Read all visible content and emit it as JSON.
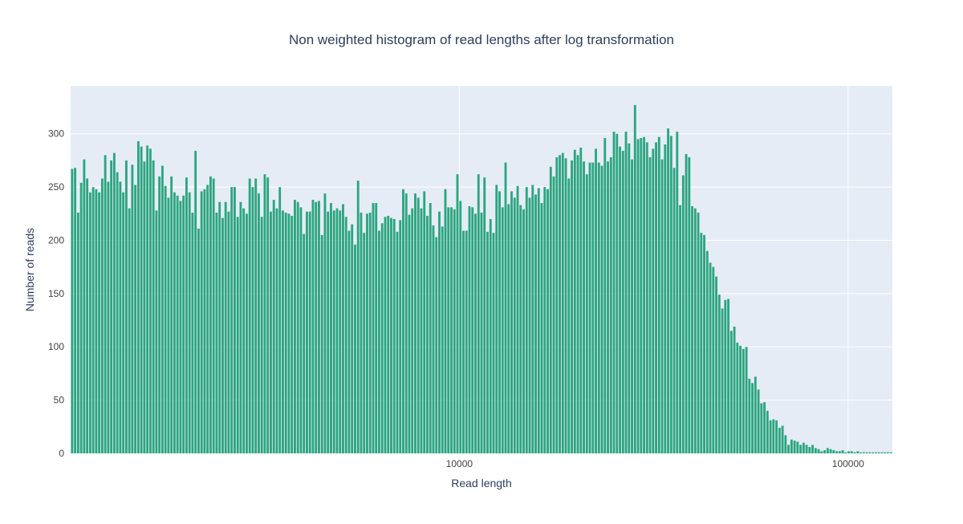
{
  "chart_data": {
    "type": "bar",
    "title": "Non weighted histogram of read lengths after log transformation",
    "xlabel": "Read length",
    "ylabel": "Number of reads",
    "x_scale": "log",
    "xlim": [
      1000,
      130000
    ],
    "ylim": [
      0,
      345
    ],
    "y_ticks": [
      0,
      50,
      100,
      150,
      200,
      250,
      300
    ],
    "x_ticks": [
      10000,
      100000
    ],
    "x_tick_labels": [
      "10000",
      "100000"
    ],
    "grid": true,
    "bar_color": "#2ca57f",
    "plot_bg": "#e5ecf6",
    "bin_start": 1000,
    "bin_end": 130000,
    "values": [
      267,
      268,
      226,
      254,
      276,
      258,
      245,
      250,
      248,
      245,
      258,
      280,
      255,
      275,
      282,
      264,
      255,
      245,
      275,
      230,
      271,
      252,
      293,
      288,
      274,
      289,
      286,
      275,
      228,
      260,
      270,
      251,
      240,
      260,
      245,
      242,
      237,
      242,
      259,
      245,
      226,
      284,
      211,
      246,
      248,
      252,
      260,
      258,
      226,
      236,
      221,
      236,
      227,
      250,
      250,
      222,
      236,
      230,
      225,
      258,
      250,
      258,
      244,
      222,
      262,
      259,
      227,
      238,
      230,
      250,
      228,
      226,
      225,
      223,
      238,
      236,
      231,
      206,
      227,
      227,
      238,
      236,
      237,
      205,
      244,
      227,
      235,
      228,
      230,
      228,
      234,
      222,
      209,
      215,
      196,
      256,
      226,
      207,
      225,
      226,
      235,
      235,
      209,
      216,
      222,
      223,
      221,
      220,
      208,
      219,
      248,
      244,
      224,
      230,
      244,
      240,
      230,
      246,
      223,
      235,
      214,
      203,
      227,
      213,
      248,
      231,
      231,
      229,
      262,
      237,
      209,
      209,
      232,
      231,
      225,
      262,
      226,
      259,
      208,
      220,
      207,
      252,
      246,
      231,
      273,
      234,
      246,
      240,
      251,
      233,
      229,
      250,
      240,
      252,
      243,
      249,
      235,
      250,
      248,
      269,
      260,
      278,
      280,
      282,
      277,
      258,
      275,
      285,
      280,
      287,
      274,
      262,
      273,
      273,
      286,
      273,
      270,
      296,
      274,
      278,
      302,
      300,
      288,
      284,
      302,
      291,
      276,
      327,
      295,
      296,
      297,
      292,
      278,
      286,
      292,
      297,
      276,
      290,
      305,
      298,
      268,
      302,
      233,
      261,
      281,
      278,
      232,
      230,
      226,
      207,
      205,
      190,
      179,
      175,
      166,
      149,
      136,
      144,
      145,
      115,
      119,
      104,
      101,
      98,
      100,
      70,
      66,
      72,
      60,
      47,
      48,
      40,
      31,
      32,
      31,
      24,
      26,
      17,
      8,
      13,
      12,
      11,
      8,
      10,
      8,
      6,
      8,
      5,
      4,
      2,
      3,
      5,
      4,
      3,
      2,
      2,
      3,
      1,
      2,
      2,
      1,
      2,
      1,
      1,
      1,
      1,
      1,
      1,
      1,
      1,
      1,
      1,
      1
    ]
  }
}
